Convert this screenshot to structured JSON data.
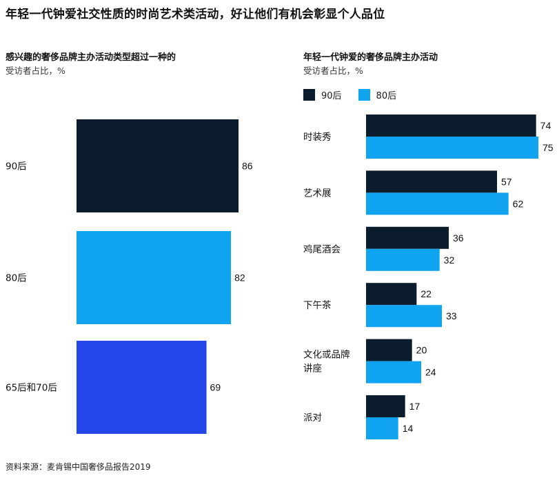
{
  "page_title": "年轻一代钟爱社交性质的时尚艺术类活动，好让他们有机会彰显个人品位",
  "source": "资料来源：麦肯锡中国奢侈品报告2019",
  "colors": {
    "post90": "#0b1c2d",
    "post80": "#10a4f0",
    "post65_70": "#2445e8"
  },
  "chart_data": [
    {
      "type": "bar",
      "orientation": "horizontal",
      "title": "感兴趣的奢侈品牌主办活动类型超过一种的",
      "unit_label": "受访者占比，%",
      "categories": [
        "90后",
        "80后",
        "65后和70后"
      ],
      "values": [
        86,
        82,
        69
      ],
      "colors": [
        "#0b1c2d",
        "#10a4f0",
        "#2445e8"
      ],
      "xlim": [
        0,
        100
      ],
      "grid": false
    },
    {
      "type": "bar",
      "orientation": "horizontal",
      "title": "年轻一代钟爱的奢侈品牌主办活动",
      "unit_label": "受访者占比，%",
      "categories": [
        "时装秀",
        "艺术展",
        "鸡尾酒会",
        "下午茶",
        "文化或品牌讲座",
        "派对"
      ],
      "category_lines": [
        [
          "时装秀"
        ],
        [
          "艺术展"
        ],
        [
          "鸡尾酒会"
        ],
        [
          "下午茶"
        ],
        [
          "文化或品牌",
          "讲座"
        ],
        [
          "派对"
        ]
      ],
      "series": [
        {
          "name": "90后",
          "values": [
            74,
            57,
            36,
            22,
            20,
            17
          ]
        },
        {
          "name": "80后",
          "values": [
            75,
            62,
            32,
            33,
            24,
            14
          ]
        }
      ],
      "xlim": [
        0,
        75
      ],
      "legend_position": "top-left",
      "grid": false
    }
  ]
}
